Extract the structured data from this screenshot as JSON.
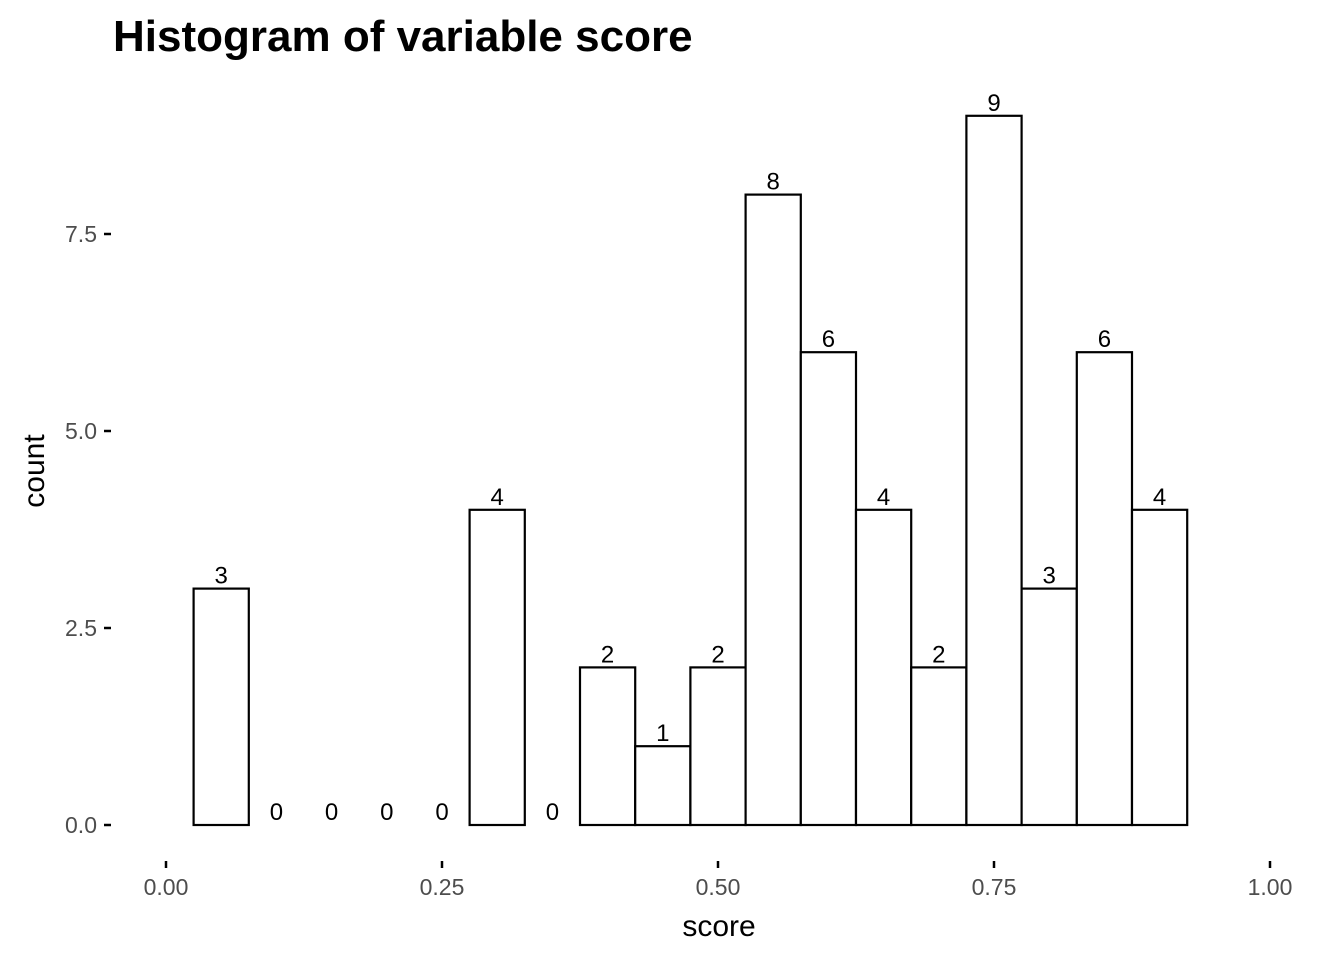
{
  "chart_data": {
    "type": "bar",
    "title": "Histogram of variable score",
    "xlabel": "score",
    "ylabel": "count",
    "xlim": [
      0,
      1
    ],
    "ylim": [
      0,
      9.45
    ],
    "x_ticks": [
      "0.00",
      "0.25",
      "0.50",
      "0.75",
      "1.00"
    ],
    "y_ticks": [
      "0.0",
      "2.5",
      "5.0",
      "7.5"
    ],
    "bin_width": 0.05,
    "bin_centers": [
      0.05,
      0.1,
      0.15,
      0.2,
      0.25,
      0.3,
      0.35,
      0.4,
      0.45,
      0.5,
      0.55,
      0.6,
      0.65,
      0.7,
      0.75,
      0.8,
      0.85,
      0.9
    ],
    "values": [
      3,
      0,
      0,
      0,
      0,
      4,
      0,
      2,
      1,
      2,
      8,
      6,
      4,
      2,
      9,
      3,
      6,
      4
    ],
    "grid": false,
    "colors": {
      "bar_fill": "#ffffff",
      "bar_stroke": "#000000",
      "tick_label": "#4d4d4d"
    }
  }
}
